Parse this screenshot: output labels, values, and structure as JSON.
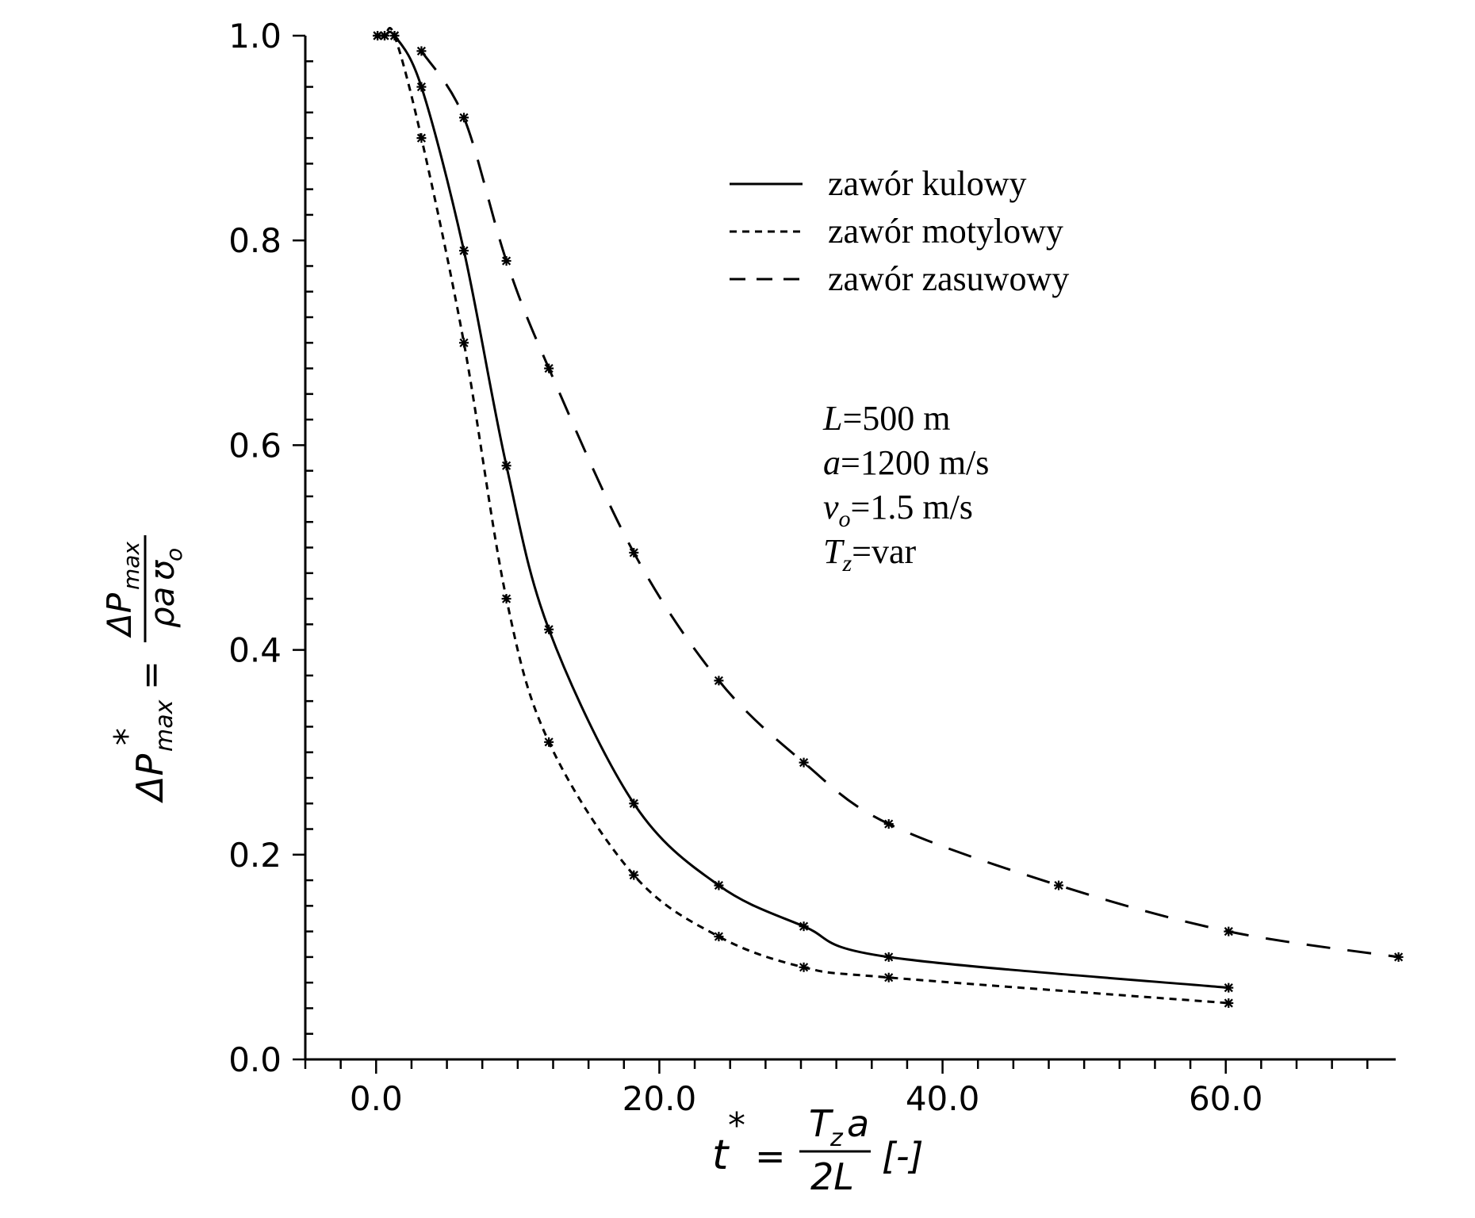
{
  "chart_data": {
    "type": "line",
    "title": "",
    "xlabel": {
      "lhs": "t",
      "star": "*",
      "eq": "=",
      "num": "T",
      "num_sub": "z",
      "num_tail": "a",
      "den": "2L",
      "unit": "[-]"
    },
    "ylabel": {
      "lhs": "ΔP",
      "lhs_sub": "max",
      "star": "*",
      "eq": "=",
      "num": "ΔP",
      "num_sub": "max",
      "den": "ρa",
      "den_tail": "ʊ",
      "den_sub": "o"
    },
    "xlim": [
      -5,
      72
    ],
    "ylim": [
      0,
      1.0
    ],
    "xticks": [
      0,
      20,
      40,
      60
    ],
    "xtick_labels": [
      "0.0",
      "20.0",
      "40.0",
      "60.0"
    ],
    "yticks": [
      0,
      0.2,
      0.4,
      0.6,
      0.8,
      1.0
    ],
    "ytick_labels": [
      "0.0",
      "0.2",
      "0.4",
      "0.6",
      "0.8",
      "1.0"
    ],
    "grid": false,
    "legend_position": "top-right",
    "series": [
      {
        "name": "zawór kulowy",
        "style": "solid",
        "x": [
          0.1,
          0.6,
          1.3,
          3.2,
          6.2,
          9.2,
          12.2,
          18.2,
          24.2,
          30.2,
          36.2,
          60.2
        ],
        "y": [
          1.0,
          1.0,
          1.0,
          0.95,
          0.79,
          0.58,
          0.42,
          0.25,
          0.17,
          0.13,
          0.1,
          0.07
        ]
      },
      {
        "name": "zawór motylowy",
        "style": "dotted",
        "x": [
          0.1,
          0.6,
          1.3,
          3.2,
          6.2,
          9.2,
          12.2,
          18.2,
          24.2,
          30.2,
          36.2,
          60.2
        ],
        "y": [
          1.0,
          1.0,
          1.0,
          0.9,
          0.7,
          0.45,
          0.31,
          0.18,
          0.12,
          0.09,
          0.08,
          0.055
        ]
      },
      {
        "name": "zawór zasuwowy",
        "style": "dashed",
        "x": [
          3.2,
          6.2,
          9.2,
          12.2,
          18.2,
          24.2,
          30.2,
          36.2,
          48.2,
          60.2,
          72.2
        ],
        "y": [
          0.985,
          0.92,
          0.78,
          0.675,
          0.495,
          0.37,
          0.29,
          0.23,
          0.17,
          0.125,
          0.1
        ]
      }
    ],
    "annotations": [
      {
        "var": "L",
        "sub": "",
        "rest": "=500 m"
      },
      {
        "var": "a",
        "sub": "",
        "rest": "=1200 m/s"
      },
      {
        "var": "v",
        "sub": "o",
        "rest": "=1.5 m/s"
      },
      {
        "var": "T",
        "sub": "z",
        "rest": "=var"
      }
    ]
  }
}
